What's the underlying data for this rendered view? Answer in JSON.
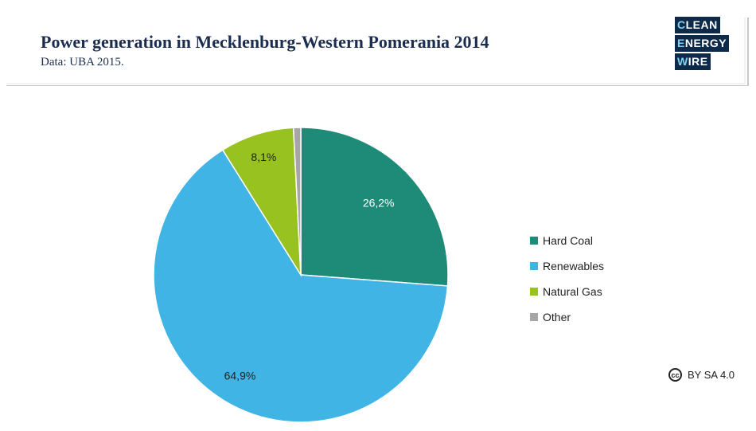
{
  "header": {
    "title": "Power generation in Mecklenburg-Western Pomerania 2014",
    "subtitle": "Data: UBA 2015."
  },
  "logo": {
    "lines": [
      {
        "first": "C",
        "rest": "LEAN"
      },
      {
        "first": "E",
        "rest": "NERGY"
      },
      {
        "first": "W",
        "rest": "IRE"
      }
    ]
  },
  "license": {
    "icon_text": "cc",
    "text": "BY SA 4.0",
    "icon": "creative-commons-icon"
  },
  "colors": {
    "title": "#1b2d4f",
    "logo_bg": "#0d2a4a",
    "logo_accent": "#7fd3f2",
    "header_rule": "#bfbfbf"
  },
  "chart_data": {
    "type": "pie",
    "title": "",
    "start_angle": 0,
    "direction": "clockwise",
    "legend_position": "right",
    "slices": [
      {
        "name": "Hard Coal",
        "value": 26.2,
        "label": "26,2%",
        "color": "#1e8a78"
      },
      {
        "name": "Renewables",
        "value": 64.9,
        "label": "64,9%",
        "color": "#41b4e6"
      },
      {
        "name": "Natural Gas",
        "value": 8.1,
        "label": "8,1%",
        "color": "#98c21f"
      },
      {
        "name": "Other",
        "value": 0.8,
        "label": "",
        "color": "#a6a6a6"
      }
    ]
  }
}
